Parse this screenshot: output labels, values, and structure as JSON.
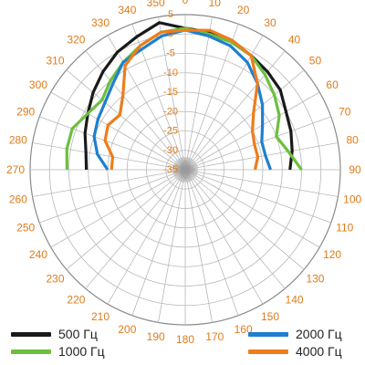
{
  "chart_data": {
    "type": "line",
    "subtype": "polar",
    "angle_ticks": [
      0,
      10,
      20,
      30,
      40,
      50,
      60,
      70,
      80,
      90,
      100,
      110,
      120,
      130,
      140,
      150,
      160,
      170,
      180,
      190,
      200,
      210,
      220,
      230,
      240,
      250,
      260,
      270,
      280,
      290,
      300,
      310,
      320,
      330,
      340,
      350
    ],
    "radial_ticks": [
      5,
      0,
      -5,
      -10,
      -15,
      -20,
      -25,
      -30,
      -35
    ],
    "r_range": [
      -35,
      5
    ],
    "grid": true,
    "legend_position": "bottom",
    "series": [
      {
        "name": "500 Гц",
        "color": "#1a1a1a",
        "points": [
          [
            270,
            -9.5
          ],
          [
            280,
            -9
          ],
          [
            290,
            -7.5
          ],
          [
            300,
            -6
          ],
          [
            310,
            -4
          ],
          [
            320,
            -2
          ],
          [
            330,
            0
          ],
          [
            340,
            1.5
          ],
          [
            350,
            3.5
          ],
          [
            0,
            1.5
          ],
          [
            10,
            1
          ],
          [
            20,
            0
          ],
          [
            30,
            -1
          ],
          [
            40,
            -2
          ],
          [
            50,
            -3
          ],
          [
            60,
            -5
          ],
          [
            70,
            -6
          ],
          [
            80,
            -7
          ],
          [
            90,
            -8
          ]
        ]
      },
      {
        "name": "1000 Гц",
        "color": "#6cbf3f",
        "points": [
          [
            270,
            -4.5
          ],
          [
            280,
            -4
          ],
          [
            290,
            -4
          ],
          [
            300,
            -6
          ],
          [
            310,
            -7
          ],
          [
            320,
            -5
          ],
          [
            330,
            -3
          ],
          [
            340,
            -1
          ],
          [
            350,
            1
          ],
          [
            0,
            1.5
          ],
          [
            10,
            0.5
          ],
          [
            20,
            0
          ],
          [
            30,
            -1
          ],
          [
            40,
            -3
          ],
          [
            50,
            -5
          ],
          [
            60,
            -7
          ],
          [
            70,
            -10
          ],
          [
            80,
            -8
          ],
          [
            90,
            -5
          ]
        ]
      },
      {
        "name": "2000 Гц",
        "color": "#1f7fcf",
        "points": [
          [
            270,
            -15
          ],
          [
            280,
            -12
          ],
          [
            290,
            -10
          ],
          [
            300,
            -9
          ],
          [
            310,
            -8
          ],
          [
            320,
            -6
          ],
          [
            330,
            -3
          ],
          [
            340,
            -2
          ],
          [
            350,
            0
          ],
          [
            0,
            1
          ],
          [
            10,
            0
          ],
          [
            20,
            -1
          ],
          [
            30,
            -3
          ],
          [
            40,
            -6
          ],
          [
            50,
            -9
          ],
          [
            60,
            -12
          ],
          [
            70,
            -14
          ],
          [
            80,
            -14
          ],
          [
            90,
            -13
          ]
        ]
      },
      {
        "name": "4000 Гц",
        "color": "#ee7d1c",
        "points": [
          [
            270,
            -16
          ],
          [
            280,
            -16
          ],
          [
            290,
            -13
          ],
          [
            300,
            -12
          ],
          [
            310,
            -13
          ],
          [
            320,
            -10
          ],
          [
            330,
            -4
          ],
          [
            340,
            -1
          ],
          [
            350,
            1
          ],
          [
            0,
            1
          ],
          [
            10,
            1.5
          ],
          [
            20,
            0.5
          ],
          [
            30,
            -1
          ],
          [
            40,
            -6
          ],
          [
            50,
            -12
          ],
          [
            60,
            -15
          ],
          [
            70,
            -16
          ],
          [
            80,
            -16
          ],
          [
            90,
            -17
          ]
        ]
      }
    ]
  }
}
